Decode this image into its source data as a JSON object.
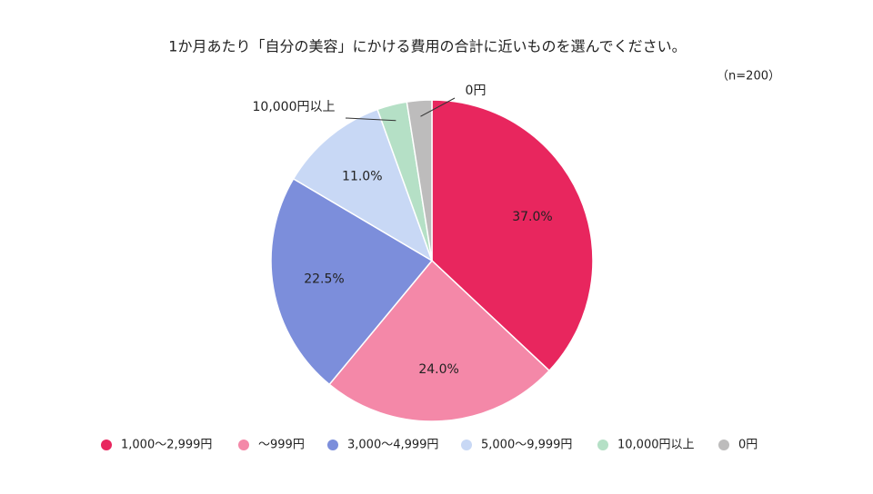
{
  "chart_data": {
    "type": "pie",
    "title": "1か月あたり「自分の美容」にかける費用の合計に近いものを選んでください。",
    "subtitle": "（n=200）",
    "categories": [
      "1,000～2,999円",
      "～999円",
      "3,000～4,999円",
      "5,000～9,999円",
      "10,000円以上",
      "0円"
    ],
    "values": [
      37,
      24,
      22.5,
      11,
      3,
      2.5
    ],
    "value_labels": [
      "37.0%",
      "24.0%",
      "22.5%",
      "11.0%",
      null,
      null
    ],
    "colors": [
      "#e8265e",
      "#f488a8",
      "#7c8edb",
      "#c8d8f5",
      "#b5e0c6",
      "#bdbcbc"
    ],
    "legend": "bottom"
  }
}
